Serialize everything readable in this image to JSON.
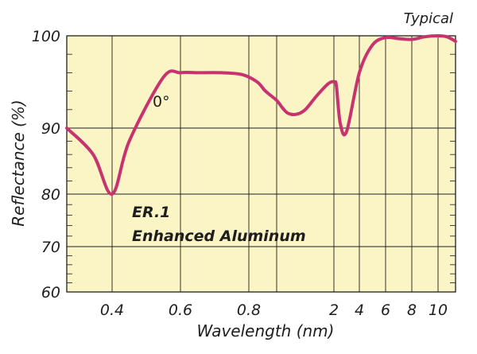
{
  "chart_data": {
    "type": "line",
    "note": "Typical",
    "xlabel": "Wavelength (nm)",
    "ylabel": "Reflectance (%)",
    "ylim": [
      60,
      100
    ],
    "x_tick_labels": [
      "0.4",
      "0.6",
      "0.8",
      "2",
      "4",
      "6",
      "8",
      "10"
    ],
    "y_tick_labels": [
      "60",
      "70",
      "80",
      "90",
      "100"
    ],
    "grid": true,
    "series": [
      {
        "label": "0°",
        "x": [
          0.28,
          0.35,
          0.4,
          0.45,
          0.55,
          0.6,
          0.65,
          0.72,
          0.78,
          0.86,
          0.92,
          1.0,
          1.1,
          1.2,
          1.35,
          1.5,
          1.7,
          1.9,
          2.05,
          2.2,
          2.5,
          3.0,
          4.0,
          5.0,
          6.0,
          7.0,
          8.0,
          9.0,
          10.0,
          11.0,
          12.0
        ],
        "y": [
          90,
          86,
          80,
          88,
          95.5,
          96,
          96,
          96,
          95.8,
          95,
          94,
          93,
          92.2,
          91.6,
          91.5,
          92,
          93.5,
          94.8,
          95,
          94.5,
          90.5,
          89.5,
          96,
          99,
          99.8,
          99.7,
          99.6,
          99.9,
          100,
          99.9,
          99.4
        ]
      }
    ],
    "product_lines": [
      "ER.1",
      "Enhanced Aluminum"
    ],
    "colors": {
      "plot_bg": "#fbf5c6",
      "line": "#c7336f",
      "grid": "#1e1e1e"
    }
  }
}
